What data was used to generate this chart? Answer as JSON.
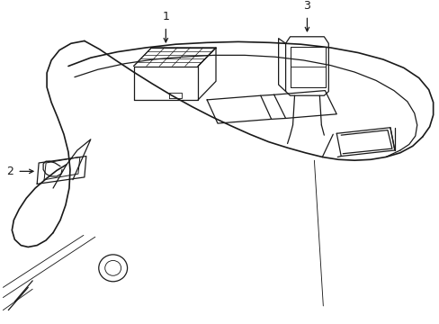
{
  "background_color": "#ffffff",
  "line_color": "#1a1a1a",
  "line_width": 0.9,
  "fig_width": 4.89,
  "fig_height": 3.6
}
